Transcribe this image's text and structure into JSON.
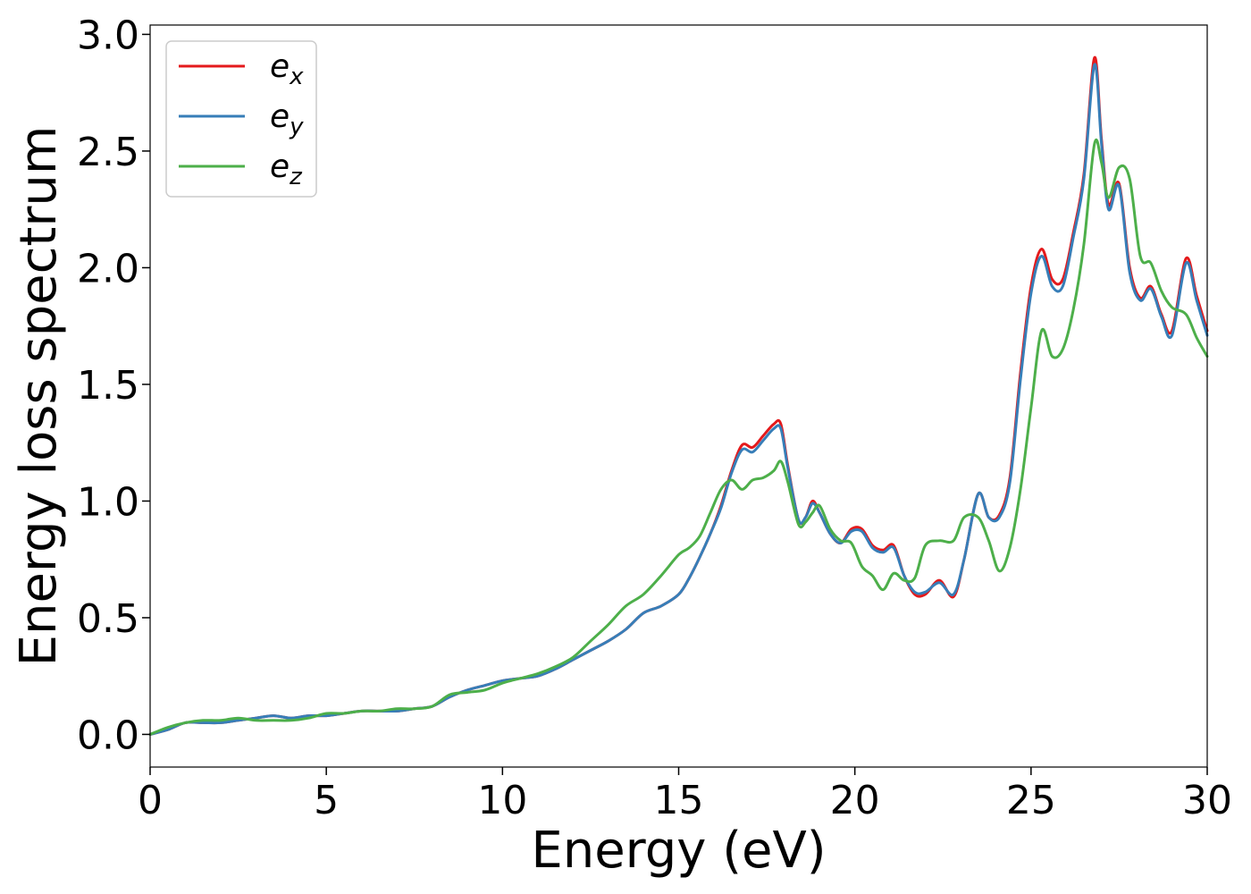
{
  "chart_data": {
    "type": "line",
    "title": "",
    "xlabel": "Energy (eV)",
    "ylabel": "Energy loss spectrum",
    "xlim": [
      0,
      30
    ],
    "ylim": [
      -0.14,
      3.04
    ],
    "xticks": [
      0,
      5,
      10,
      15,
      20,
      25,
      30
    ],
    "xtick_labels": [
      "0",
      "5",
      "10",
      "15",
      "20",
      "25",
      "30"
    ],
    "yticks": [
      0.0,
      0.5,
      1.0,
      1.5,
      2.0,
      2.5,
      3.0
    ],
    "ytick_labels": [
      "0.0",
      "0.5",
      "1.0",
      "1.5",
      "2.0",
      "2.5",
      "3.0"
    ],
    "grid": false,
    "legend_position": "top-left",
    "series": [
      {
        "name": "e_x",
        "legend_base": "e",
        "legend_sub": "x",
        "color": "#e41a1c",
        "points": [
          [
            0,
            0.0
          ],
          [
            0.5,
            0.02
          ],
          [
            1,
            0.05
          ],
          [
            1.5,
            0.05
          ],
          [
            2,
            0.05
          ],
          [
            2.5,
            0.06
          ],
          [
            3,
            0.07
          ],
          [
            3.5,
            0.08
          ],
          [
            4,
            0.07
          ],
          [
            4.5,
            0.08
          ],
          [
            5,
            0.08
          ],
          [
            5.5,
            0.09
          ],
          [
            6,
            0.1
          ],
          [
            6.5,
            0.1
          ],
          [
            7,
            0.1
          ],
          [
            7.5,
            0.11
          ],
          [
            8,
            0.12
          ],
          [
            8.5,
            0.16
          ],
          [
            9,
            0.19
          ],
          [
            9.5,
            0.21
          ],
          [
            10,
            0.23
          ],
          [
            10.5,
            0.24
          ],
          [
            11,
            0.25
          ],
          [
            11.5,
            0.28
          ],
          [
            12,
            0.32
          ],
          [
            12.5,
            0.36
          ],
          [
            13,
            0.4
          ],
          [
            13.5,
            0.45
          ],
          [
            14,
            0.52
          ],
          [
            14.5,
            0.55
          ],
          [
            15,
            0.6
          ],
          [
            15.3,
            0.67
          ],
          [
            15.6,
            0.76
          ],
          [
            15.9,
            0.86
          ],
          [
            16.2,
            0.98
          ],
          [
            16.5,
            1.13
          ],
          [
            16.8,
            1.24
          ],
          [
            17.1,
            1.23
          ],
          [
            17.4,
            1.28
          ],
          [
            17.7,
            1.33
          ],
          [
            17.9,
            1.33
          ],
          [
            18.1,
            1.15
          ],
          [
            18.4,
            0.92
          ],
          [
            18.6,
            0.93
          ],
          [
            18.8,
            1.0
          ],
          [
            19.0,
            0.95
          ],
          [
            19.3,
            0.86
          ],
          [
            19.6,
            0.82
          ],
          [
            19.9,
            0.88
          ],
          [
            20.2,
            0.88
          ],
          [
            20.5,
            0.81
          ],
          [
            20.8,
            0.79
          ],
          [
            21.1,
            0.81
          ],
          [
            21.4,
            0.68
          ],
          [
            21.7,
            0.6
          ],
          [
            22.0,
            0.6
          ],
          [
            22.4,
            0.66
          ],
          [
            22.8,
            0.59
          ],
          [
            23.1,
            0.75
          ],
          [
            23.5,
            1.03
          ],
          [
            23.8,
            0.93
          ],
          [
            24.1,
            0.94
          ],
          [
            24.4,
            1.1
          ],
          [
            24.7,
            1.55
          ],
          [
            25.0,
            1.92
          ],
          [
            25.3,
            2.08
          ],
          [
            25.6,
            1.95
          ],
          [
            25.9,
            1.95
          ],
          [
            26.2,
            2.15
          ],
          [
            26.5,
            2.4
          ],
          [
            26.8,
            2.9
          ],
          [
            27.0,
            2.55
          ],
          [
            27.2,
            2.27
          ],
          [
            27.5,
            2.36
          ],
          [
            27.8,
            2.0
          ],
          [
            28.1,
            1.87
          ],
          [
            28.4,
            1.92
          ],
          [
            28.7,
            1.8
          ],
          [
            29.0,
            1.73
          ],
          [
            29.4,
            2.04
          ],
          [
            29.7,
            1.88
          ],
          [
            30,
            1.73
          ]
        ]
      },
      {
        "name": "e_y",
        "legend_base": "e",
        "legend_sub": "y",
        "color": "#377eb8",
        "points": [
          [
            0,
            0.0
          ],
          [
            0.5,
            0.02
          ],
          [
            1,
            0.05
          ],
          [
            1.5,
            0.05
          ],
          [
            2,
            0.05
          ],
          [
            2.5,
            0.06
          ],
          [
            3,
            0.07
          ],
          [
            3.5,
            0.08
          ],
          [
            4,
            0.07
          ],
          [
            4.5,
            0.08
          ],
          [
            5,
            0.08
          ],
          [
            5.5,
            0.09
          ],
          [
            6,
            0.1
          ],
          [
            6.5,
            0.1
          ],
          [
            7,
            0.1
          ],
          [
            7.5,
            0.11
          ],
          [
            8,
            0.12
          ],
          [
            8.5,
            0.16
          ],
          [
            9,
            0.19
          ],
          [
            9.5,
            0.21
          ],
          [
            10,
            0.23
          ],
          [
            10.5,
            0.24
          ],
          [
            11,
            0.25
          ],
          [
            11.5,
            0.28
          ],
          [
            12,
            0.32
          ],
          [
            12.5,
            0.36
          ],
          [
            13,
            0.4
          ],
          [
            13.5,
            0.45
          ],
          [
            14,
            0.52
          ],
          [
            14.5,
            0.55
          ],
          [
            15,
            0.6
          ],
          [
            15.3,
            0.67
          ],
          [
            15.6,
            0.76
          ],
          [
            15.9,
            0.86
          ],
          [
            16.2,
            0.97
          ],
          [
            16.5,
            1.12
          ],
          [
            16.8,
            1.22
          ],
          [
            17.1,
            1.21
          ],
          [
            17.4,
            1.26
          ],
          [
            17.7,
            1.31
          ],
          [
            17.9,
            1.31
          ],
          [
            18.1,
            1.14
          ],
          [
            18.4,
            0.92
          ],
          [
            18.6,
            0.93
          ],
          [
            18.8,
            0.99
          ],
          [
            19.0,
            0.95
          ],
          [
            19.3,
            0.86
          ],
          [
            19.6,
            0.82
          ],
          [
            19.9,
            0.87
          ],
          [
            20.2,
            0.87
          ],
          [
            20.5,
            0.8
          ],
          [
            20.8,
            0.78
          ],
          [
            21.1,
            0.8
          ],
          [
            21.4,
            0.68
          ],
          [
            21.7,
            0.61
          ],
          [
            22.0,
            0.61
          ],
          [
            22.4,
            0.65
          ],
          [
            22.8,
            0.6
          ],
          [
            23.1,
            0.75
          ],
          [
            23.5,
            1.03
          ],
          [
            23.8,
            0.93
          ],
          [
            24.1,
            0.93
          ],
          [
            24.4,
            1.08
          ],
          [
            24.7,
            1.52
          ],
          [
            25.0,
            1.89
          ],
          [
            25.3,
            2.05
          ],
          [
            25.6,
            1.92
          ],
          [
            25.9,
            1.92
          ],
          [
            26.2,
            2.13
          ],
          [
            26.5,
            2.38
          ],
          [
            26.8,
            2.87
          ],
          [
            27.0,
            2.53
          ],
          [
            27.2,
            2.25
          ],
          [
            27.5,
            2.35
          ],
          [
            27.8,
            1.98
          ],
          [
            28.1,
            1.86
          ],
          [
            28.4,
            1.91
          ],
          [
            28.7,
            1.79
          ],
          [
            29.0,
            1.71
          ],
          [
            29.4,
            2.02
          ],
          [
            29.7,
            1.86
          ],
          [
            30,
            1.71
          ]
        ]
      },
      {
        "name": "e_z",
        "legend_base": "e",
        "legend_sub": "z",
        "color": "#4daf4a",
        "points": [
          [
            0,
            0.0
          ],
          [
            0.5,
            0.03
          ],
          [
            1,
            0.05
          ],
          [
            1.5,
            0.06
          ],
          [
            2,
            0.06
          ],
          [
            2.5,
            0.07
          ],
          [
            3,
            0.06
          ],
          [
            3.5,
            0.06
          ],
          [
            4,
            0.06
          ],
          [
            4.5,
            0.07
          ],
          [
            5,
            0.09
          ],
          [
            5.5,
            0.09
          ],
          [
            6,
            0.1
          ],
          [
            6.5,
            0.1
          ],
          [
            7,
            0.11
          ],
          [
            7.5,
            0.11
          ],
          [
            8,
            0.12
          ],
          [
            8.5,
            0.17
          ],
          [
            9,
            0.18
          ],
          [
            9.5,
            0.19
          ],
          [
            10,
            0.22
          ],
          [
            10.5,
            0.24
          ],
          [
            11,
            0.26
          ],
          [
            11.5,
            0.29
          ],
          [
            12,
            0.33
          ],
          [
            12.5,
            0.4
          ],
          [
            13,
            0.47
          ],
          [
            13.5,
            0.55
          ],
          [
            14,
            0.6
          ],
          [
            14.5,
            0.68
          ],
          [
            15,
            0.77
          ],
          [
            15.3,
            0.8
          ],
          [
            15.6,
            0.85
          ],
          [
            15.9,
            0.95
          ],
          [
            16.2,
            1.05
          ],
          [
            16.5,
            1.09
          ],
          [
            16.8,
            1.05
          ],
          [
            17.1,
            1.09
          ],
          [
            17.4,
            1.1
          ],
          [
            17.7,
            1.13
          ],
          [
            17.9,
            1.17
          ],
          [
            18.1,
            1.08
          ],
          [
            18.4,
            0.9
          ],
          [
            18.6,
            0.91
          ],
          [
            18.8,
            0.95
          ],
          [
            19.0,
            0.98
          ],
          [
            19.3,
            0.88
          ],
          [
            19.6,
            0.83
          ],
          [
            19.9,
            0.82
          ],
          [
            20.2,
            0.72
          ],
          [
            20.5,
            0.68
          ],
          [
            20.8,
            0.62
          ],
          [
            21.1,
            0.69
          ],
          [
            21.4,
            0.66
          ],
          [
            21.7,
            0.67
          ],
          [
            22.0,
            0.81
          ],
          [
            22.4,
            0.83
          ],
          [
            22.8,
            0.83
          ],
          [
            23.1,
            0.93
          ],
          [
            23.5,
            0.93
          ],
          [
            23.8,
            0.83
          ],
          [
            24.1,
            0.7
          ],
          [
            24.4,
            0.8
          ],
          [
            24.7,
            1.05
          ],
          [
            25.0,
            1.4
          ],
          [
            25.3,
            1.73
          ],
          [
            25.6,
            1.62
          ],
          [
            25.9,
            1.65
          ],
          [
            26.2,
            1.82
          ],
          [
            26.5,
            2.1
          ],
          [
            26.8,
            2.53
          ],
          [
            27.0,
            2.45
          ],
          [
            27.2,
            2.3
          ],
          [
            27.5,
            2.43
          ],
          [
            27.8,
            2.38
          ],
          [
            28.1,
            2.05
          ],
          [
            28.4,
            2.02
          ],
          [
            28.7,
            1.9
          ],
          [
            29.0,
            1.83
          ],
          [
            29.4,
            1.8
          ],
          [
            29.7,
            1.7
          ],
          [
            30,
            1.62
          ]
        ]
      }
    ]
  }
}
